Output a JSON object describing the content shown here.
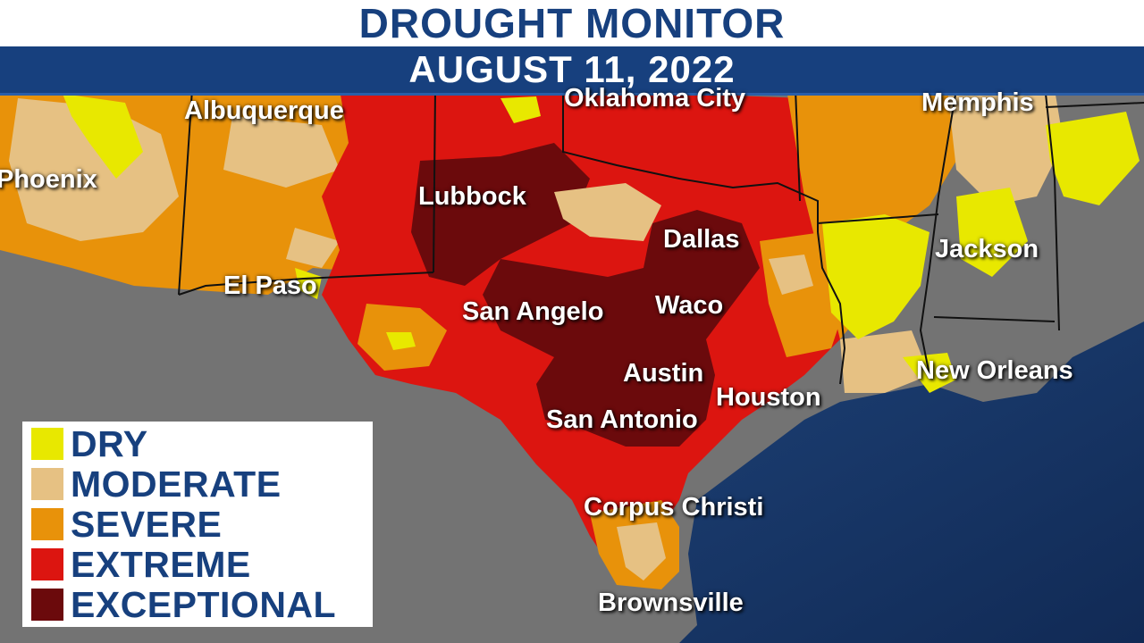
{
  "header": {
    "title": "DROUGHT MONITOR",
    "date": "AUGUST 11, 2022"
  },
  "colors": {
    "dry": "#e8e800",
    "moderate": "#e6c183",
    "severe": "#e8920a",
    "extreme": "#dc1510",
    "exceptional": "#6b0a0c",
    "land_no_drought": "#737373",
    "water": "#1a3a6e",
    "header_blue": "#17407e"
  },
  "legend": {
    "items": [
      {
        "label": "DRY",
        "color": "#e8e800"
      },
      {
        "label": "MODERATE",
        "color": "#e6c183"
      },
      {
        "label": "SEVERE",
        "color": "#e8920a"
      },
      {
        "label": "EXTREME",
        "color": "#dc1510"
      },
      {
        "label": "EXCEPTIONAL",
        "color": "#6b0a0c"
      }
    ]
  },
  "cities": {
    "phoenix": "Phoenix",
    "albuquerque": "Albuquerque",
    "oklahoma_city": "Oklahoma City",
    "memphis": "Memphis",
    "lubbock": "Lubbock",
    "dallas": "Dallas",
    "jackson": "Jackson",
    "el_paso": "El Paso",
    "san_angelo": "San Angelo",
    "waco": "Waco",
    "new_orleans": "New Orleans",
    "austin": "Austin",
    "houston": "Houston",
    "san_antonio": "San Antonio",
    "corpus_christi": "Corpus Christi",
    "brownsville": "Brownsville"
  }
}
